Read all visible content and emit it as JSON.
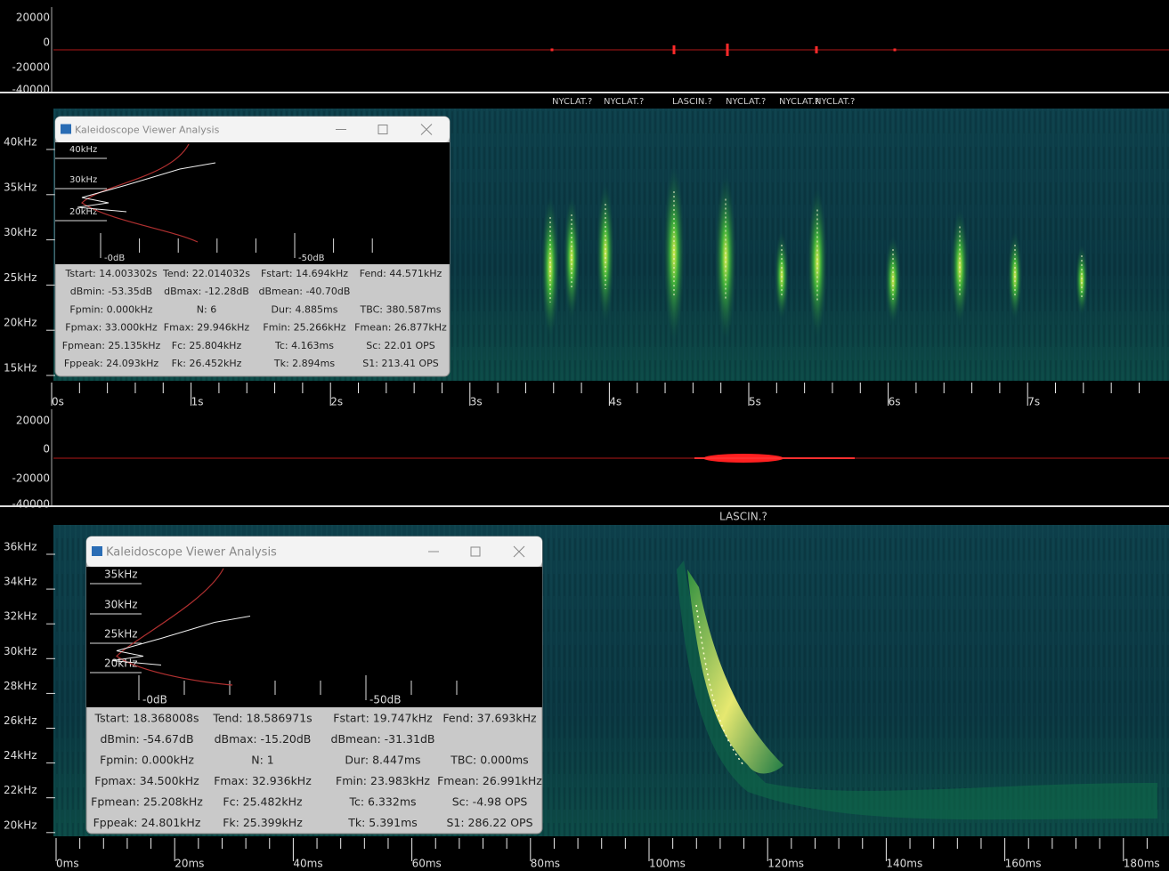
{
  "panels": [
    {
      "waveform_labels": [
        "20000",
        "0",
        "-20000",
        "-40000"
      ],
      "species_labels": [
        "NYCLAT.?",
        "NYCLAT.?",
        "LASCIN.?",
        "NYCLAT.?",
        "NYCLAT.?",
        "NYCLAT.?"
      ],
      "freq_labels": [
        "40kHz",
        "35kHz",
        "30kHz",
        "25kHz",
        "20kHz",
        "15kHz"
      ],
      "time_labels": [
        "0s",
        "1s",
        "2s",
        "3s",
        "4s",
        "5s",
        "6s",
        "7s"
      ],
      "window": {
        "title": "Kaleidoscope Viewer Analysis",
        "freq_labels": [
          "40kHz",
          "30kHz",
          "20kHz"
        ],
        "db_labels": [
          "-0dB",
          "-50dB"
        ],
        "stats": [
          [
            "Tstart: 14.003302s",
            "Tend: 22.014032s",
            "Fstart: 14.694kHz",
            "Fend: 44.571kHz"
          ],
          [
            "dBmin: -53.35dB",
            "dBmax: -12.28dB",
            "dBmean: -40.70dB"
          ],
          [
            "Fpmin: 0.000kHz",
            "N: 6",
            "Dur: 4.885ms",
            "TBC: 380.587ms"
          ],
          [
            "Fpmax: 33.000kHz",
            "Fmax: 29.946kHz",
            "Fmin: 25.266kHz",
            "Fmean: 26.877kHz"
          ],
          [
            "Fpmean: 25.135kHz",
            "Fc: 25.804kHz",
            "Tc: 4.163ms",
            "Sc: 22.01 OPS"
          ],
          [
            "Fppeak: 24.093kHz",
            "Fk: 26.452kHz",
            "Tk: 2.894ms",
            "S1: 213.41 OPS"
          ]
        ]
      }
    },
    {
      "waveform_labels": [
        "20000",
        "0",
        "-20000",
        "-40000"
      ],
      "species_labels": [
        "LASCIN.?"
      ],
      "freq_labels": [
        "36kHz",
        "34kHz",
        "32kHz",
        "30kHz",
        "28kHz",
        "26kHz",
        "24kHz",
        "22kHz",
        "20kHz"
      ],
      "time_labels": [
        "0ms",
        "20ms",
        "40ms",
        "60ms",
        "80ms",
        "100ms",
        "120ms",
        "140ms",
        "160ms",
        "180ms"
      ],
      "window": {
        "title": "Kaleidoscope Viewer Analysis",
        "freq_labels": [
          "35kHz",
          "30kHz",
          "25kHz",
          "20kHz"
        ],
        "db_labels": [
          "-0dB",
          "-50dB"
        ],
        "stats": [
          [
            "Tstart: 18.368008s",
            "Tend: 18.586971s",
            "Fstart: 19.747kHz",
            "Fend: 37.693kHz"
          ],
          [
            "dBmin: -54.67dB",
            "dBmax: -15.20dB",
            "dBmean: -31.31dB"
          ],
          [
            "Fpmin: 0.000kHz",
            "N: 1",
            "Dur: 8.447ms",
            "TBC: 0.000ms"
          ],
          [
            "Fpmax: 34.500kHz",
            "Fmax: 32.936kHz",
            "Fmin: 23.983kHz",
            "Fmean: 26.991kHz"
          ],
          [
            "Fpmean: 25.208kHz",
            "Fc: 25.482kHz",
            "Tc: 6.332ms",
            "Sc: -4.98 OPS"
          ],
          [
            "Fppeak: 24.801kHz",
            "Fk: 25.399kHz",
            "Tk: 5.391ms",
            "S1: 286.22 OPS"
          ]
        ]
      }
    }
  ]
}
